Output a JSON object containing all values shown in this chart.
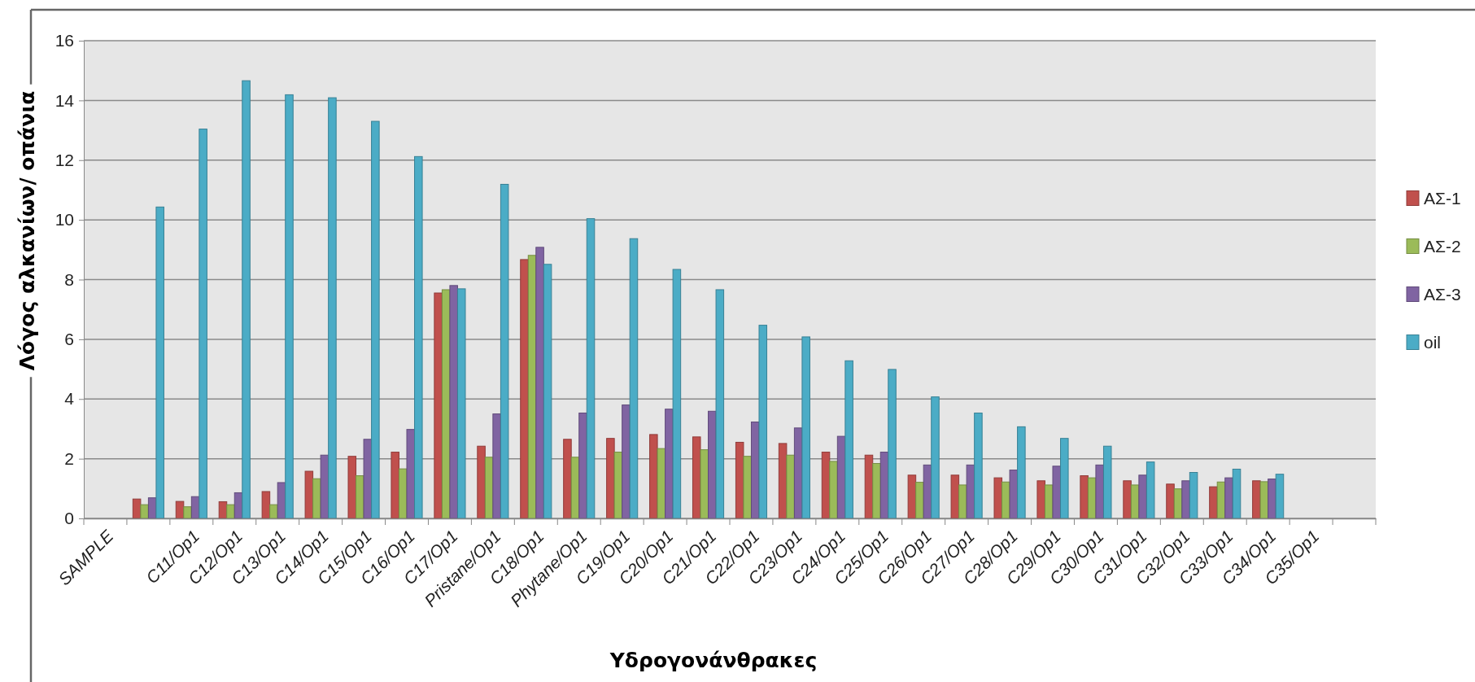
{
  "chart_data": {
    "type": "bar",
    "xlabel": "Υδρογονάνθρακες",
    "ylabel": "Λόγος αλκανίων/ οπάνια",
    "categories": [
      "SAMPLE",
      null,
      "C11/Op1",
      "C12/Op1",
      "C13/Op1",
      "C14/Op1",
      "C15/Op1",
      "C16/Op1",
      "C17/Op1",
      "Pristane/Op1",
      "C18/Op1",
      "Phytane/Op1",
      "C19/Op1",
      "C20/Op1",
      "C21/Op1",
      "C22/Op1",
      "C23/Op1",
      "C24/Op1",
      "C25/Op1",
      "C26/Op1",
      "C27/Op1",
      "C28/Op1",
      "C29/Op1",
      "C30/Op1",
      "C31/Op1",
      "C32/Op1",
      "C33/Op1",
      "C34/Op1",
      "C35/Op1",
      null
    ],
    "series": [
      {
        "name": "ΑΣ-1",
        "color": "#c0504d",
        "values": [
          null,
          0.65,
          0.57,
          0.56,
          0.9,
          1.58,
          2.08,
          2.22,
          7.55,
          2.42,
          8.67,
          2.65,
          2.68,
          2.81,
          2.73,
          2.55,
          2.51,
          2.22,
          2.12,
          1.45,
          1.45,
          1.36,
          1.26,
          1.43,
          1.26,
          1.15,
          1.06,
          1.26,
          null,
          null
        ]
      },
      {
        "name": "ΑΣ-2",
        "color": "#9bbb59",
        "values": [
          null,
          0.46,
          0.39,
          0.46,
          0.46,
          1.33,
          1.43,
          1.66,
          7.66,
          2.05,
          8.81,
          2.05,
          2.22,
          2.34,
          2.3,
          2.08,
          2.12,
          1.91,
          1.84,
          1.21,
          1.12,
          1.22,
          1.12,
          1.36,
          1.12,
          0.99,
          1.22,
          1.23,
          null,
          null
        ]
      },
      {
        "name": "ΑΣ-3",
        "color": "#8064a2",
        "values": [
          null,
          0.69,
          0.73,
          0.86,
          1.2,
          2.12,
          2.65,
          2.98,
          7.8,
          3.5,
          9.08,
          3.53,
          3.8,
          3.66,
          3.59,
          3.23,
          3.03,
          2.75,
          2.22,
          1.79,
          1.79,
          1.62,
          1.75,
          1.79,
          1.45,
          1.26,
          1.36,
          1.32,
          null,
          null
        ]
      },
      {
        "name": "oil",
        "color": "#4bacc6",
        "values": [
          null,
          10.43,
          13.04,
          14.66,
          14.19,
          14.09,
          13.3,
          12.12,
          7.69,
          11.19,
          8.51,
          10.04,
          9.37,
          8.34,
          7.66,
          6.47,
          6.08,
          5.28,
          4.99,
          4.07,
          3.53,
          3.07,
          2.68,
          2.42,
          1.89,
          1.54,
          1.65,
          1.48,
          null,
          null
        ]
      }
    ],
    "ylim": [
      0,
      16
    ],
    "yticks": [
      0,
      2,
      4,
      6,
      8,
      10,
      12,
      14,
      16
    ],
    "grid": "y",
    "legend": "right"
  }
}
